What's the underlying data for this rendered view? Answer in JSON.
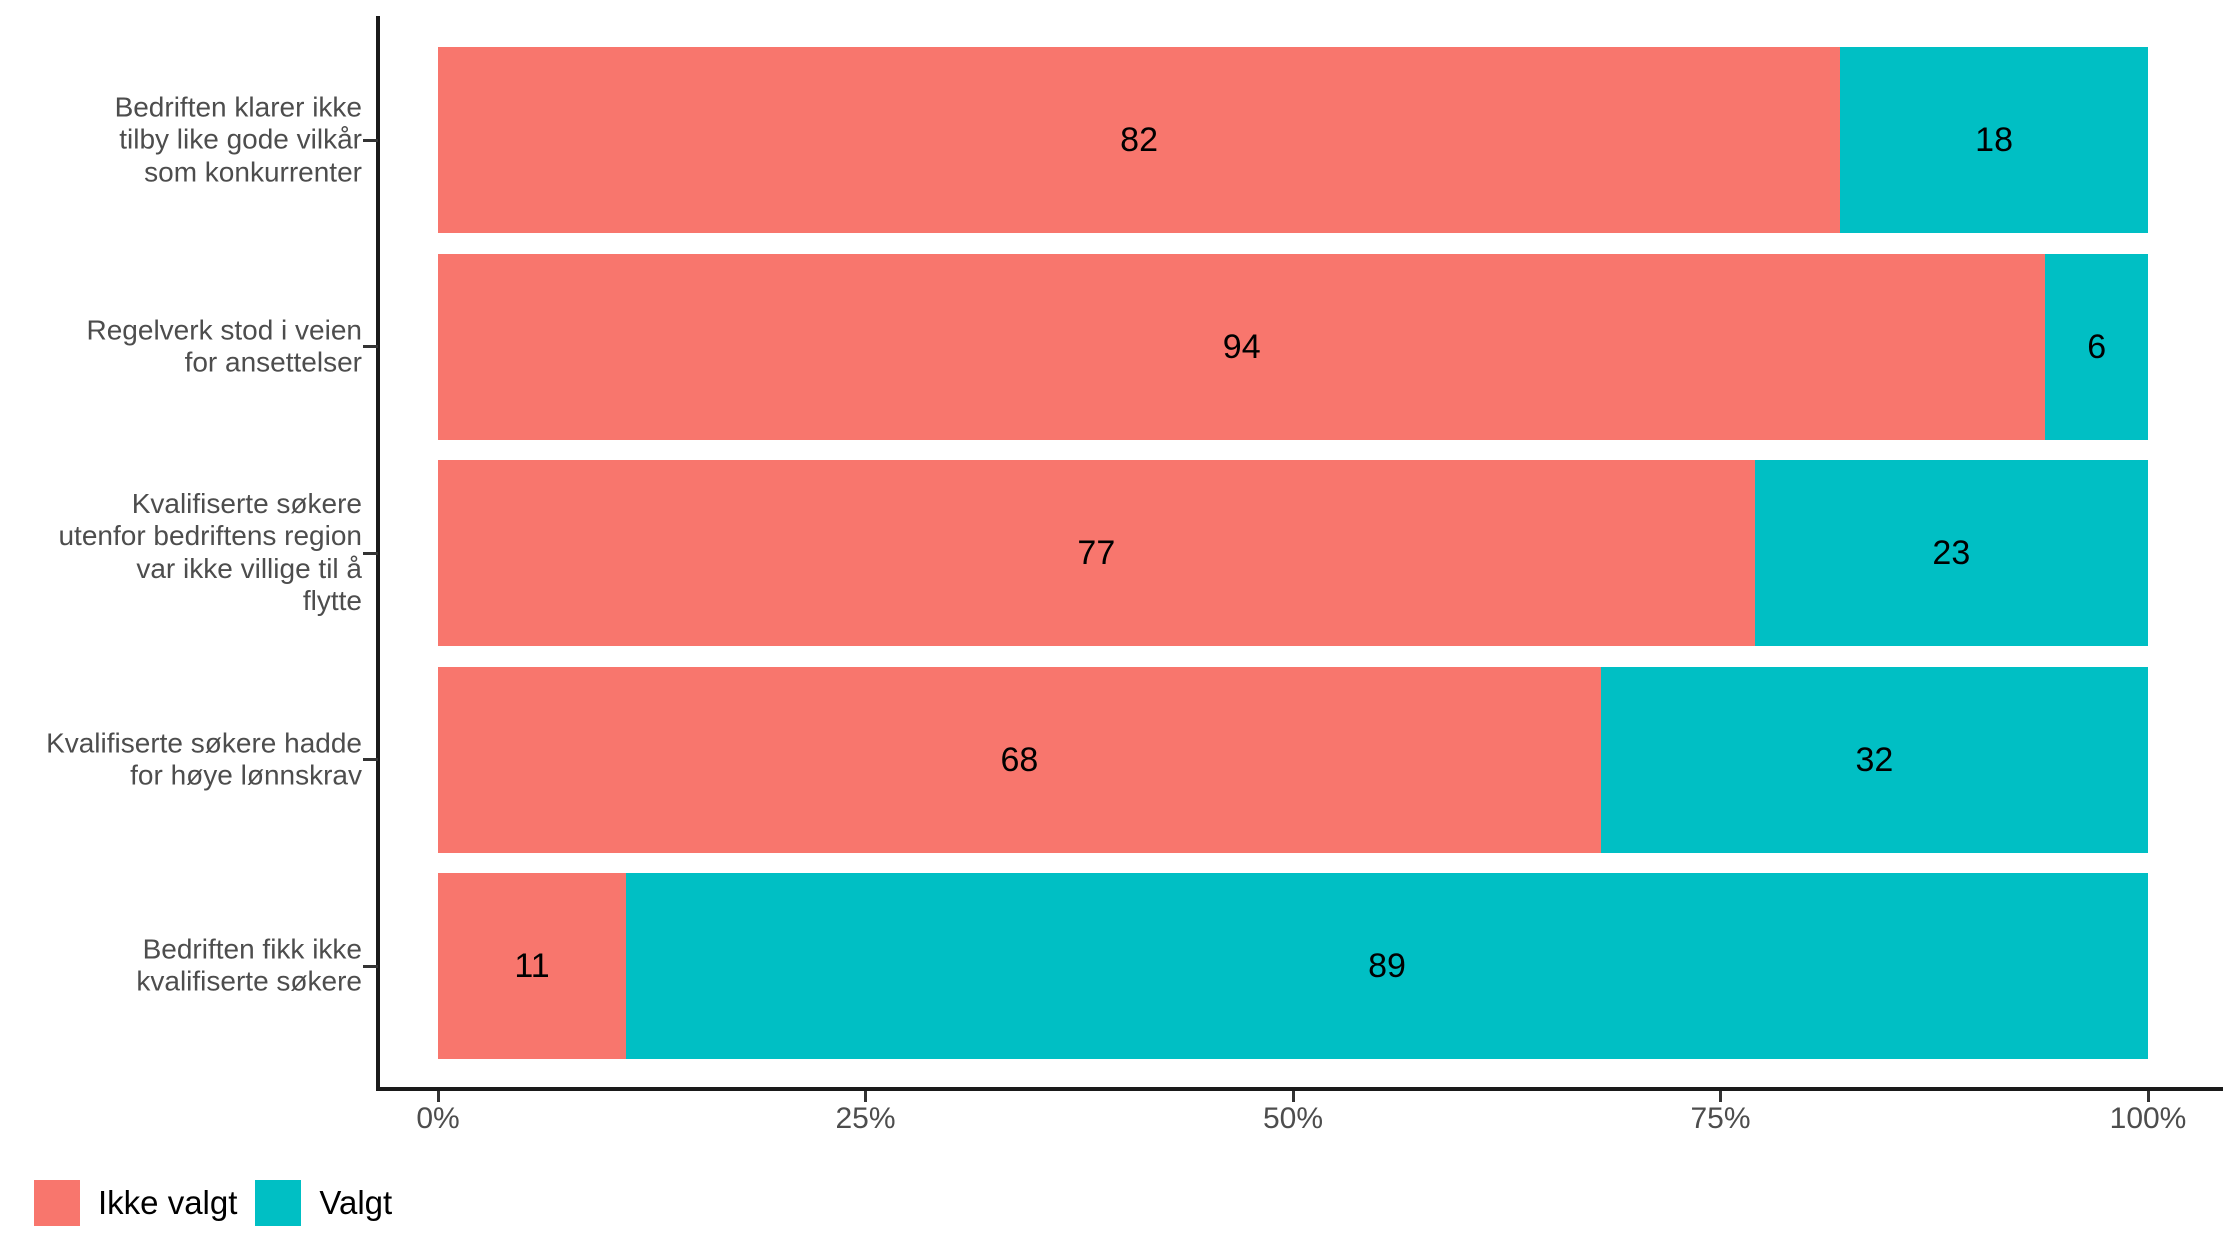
{
  "chart_data": {
    "type": "bar",
    "orientation": "horizontal",
    "stacked": true,
    "value_unit": "percent",
    "title": "",
    "xlabel": "",
    "ylabel": "",
    "grid": false,
    "categories": [
      "Bedriften klarer ikke tilby like gode vilkår som konkurrenter",
      "Regelverk stod i veien for ansettelser",
      "Kvalifiserte søkere utenfor bedriftens region var ikke villige til å flytte",
      "Kvalifiserte søkere hadde for høye lønnskrav",
      "Bedriften fikk ikke kvalifiserte søkere"
    ],
    "category_display": [
      "Bedriften klarer ikke\ntilby like gode vilkår\nsom konkurrenter",
      "Regelverk stod i veien\nfor ansettelser",
      "Kvalifiserte søkere\nutenfor bedriftens region\nvar ikke villige til å\nflytte",
      "Kvalifiserte søkere hadde\nfor høye lønnskrav",
      "Bedriften fikk ikke\nkvalifiserte søkere"
    ],
    "series": [
      {
        "name": "Ikke valgt",
        "color": "#F8766D",
        "values": [
          82,
          94,
          77,
          68,
          11
        ]
      },
      {
        "name": "Valgt",
        "color": "#00BFC4",
        "values": [
          18,
          6,
          23,
          32,
          89
        ]
      }
    ],
    "bar_value_labels": true,
    "x_axis": {
      "range": [
        0,
        100
      ],
      "ticks": [
        {
          "label": "0%",
          "value": 0
        },
        {
          "label": "25%",
          "value": 25
        },
        {
          "label": "50%",
          "value": 50
        },
        {
          "label": "75%",
          "value": 75
        },
        {
          "label": "100%",
          "value": 100
        }
      ]
    },
    "legend": {
      "position": "bottom-left",
      "entries": [
        "Ikke valgt",
        "Valgt"
      ]
    }
  },
  "colors": {
    "background": "#ffffff",
    "axis_line": "#1a1a1a",
    "tick_mark": "#333333",
    "axis_text": "#4d4d4d",
    "bar_label_text": "#000000",
    "legend_text": "#000000"
  }
}
